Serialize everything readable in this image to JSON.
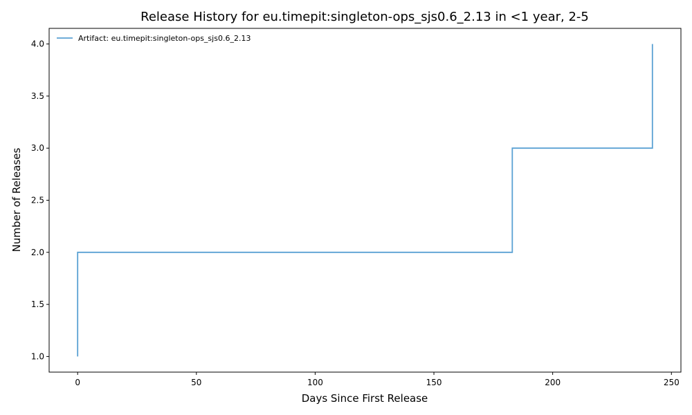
{
  "chart_data": {
    "type": "line",
    "step": "post",
    "title": "Release History for eu.timepit:singleton-ops_sjs0.6_2.13 in <1 year, 2-5",
    "xlabel": "Days Since First Release",
    "ylabel": "Number of Releases",
    "xlim": [
      -12,
      254
    ],
    "ylim": [
      0.85,
      4.15
    ],
    "xticks": [
      0,
      50,
      100,
      150,
      200,
      250
    ],
    "yticks": [
      1.0,
      1.5,
      2.0,
      2.5,
      3.0,
      3.5,
      4.0
    ],
    "grid": false,
    "legend_position": "top-left",
    "series": [
      {
        "name": "Artifact: eu.timepit:singleton-ops_sjs0.6_2.13",
        "color": "#5aa1d3",
        "x": [
          0,
          0,
          183,
          242
        ],
        "y": [
          1,
          2,
          3,
          4
        ]
      }
    ]
  }
}
